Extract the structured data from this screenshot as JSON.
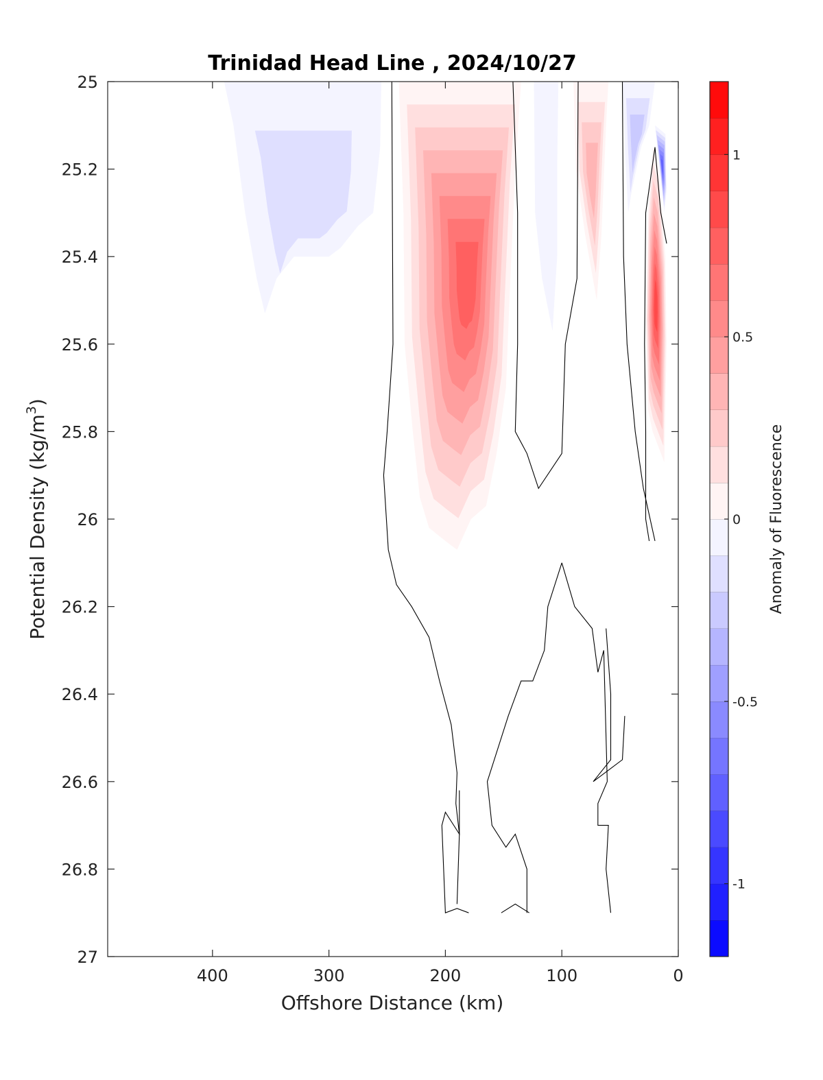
{
  "chart_data": {
    "type": "heatmap",
    "title": "Trinidad Head Line , 2024/10/27",
    "xlabel": "Offshore Distance (km)",
    "ylabel": "Potential Density (kg/m³)",
    "ylabel_parts": {
      "main": "Potential Density (kg/m",
      "sup": "3",
      "tail": ")"
    },
    "xlim": [
      490,
      0
    ],
    "ylim": [
      27,
      25
    ],
    "x_reversed": true,
    "y_reversed": true,
    "xticks": [
      400,
      300,
      200,
      100,
      0
    ],
    "xtick_labels": [
      "400",
      "300",
      "200",
      "100",
      "0"
    ],
    "yticks": [
      25,
      25.2,
      25.4,
      25.6,
      25.8,
      26,
      26.2,
      26.4,
      26.6,
      26.8,
      27
    ],
    "ytick_labels": [
      "25",
      "25.2",
      "25.4",
      "25.6",
      "25.8",
      "26",
      "26.2",
      "26.4",
      "26.6",
      "26.8",
      "27"
    ],
    "colorbar": {
      "label": "Anomaly of Fluorescence",
      "range": [
        -1.2,
        1.2
      ],
      "ticks": [
        1,
        0.5,
        0,
        -0.5,
        -1
      ],
      "tick_labels": [
        "1",
        "0.5",
        "0",
        "-0.5",
        "-1"
      ],
      "levels": 24,
      "colormap": "blue-white-red",
      "color_min": "#0000ff",
      "color_zero": "#ffffff",
      "color_max": "#ff0000"
    },
    "anomaly_features": [
      {
        "id": "offshore-negative-lens",
        "sign": "negative",
        "peak_value": -0.15,
        "x_range_km": [
          390,
          255
        ],
        "density_range": [
          25.0,
          25.53
        ]
      },
      {
        "id": "main-positive-core",
        "sign": "positive",
        "peak_value": 0.75,
        "peak_x_km": 180,
        "peak_density": 25.45,
        "x_range_km": [
          240,
          135
        ],
        "density_range": [
          25.0,
          26.07
        ]
      },
      {
        "id": "midshelf-negative",
        "sign": "negative",
        "peak_value": -0.1,
        "x_range_km": [
          125,
          103
        ],
        "density_range": [
          25.0,
          25.57
        ]
      },
      {
        "id": "shelf-positive",
        "sign": "positive",
        "peak_value": 0.35,
        "x_range_km": [
          90,
          60
        ],
        "density_range": [
          25.0,
          25.5
        ]
      },
      {
        "id": "nearshore-negative",
        "sign": "negative",
        "peak_value": -0.3,
        "x_range_km": [
          48,
          20
        ],
        "density_range": [
          25.0,
          25.3
        ]
      },
      {
        "id": "coastal-positive-jet",
        "sign": "positive",
        "peak_value": 0.85,
        "x_range_km": [
          30,
          10
        ],
        "density_range": [
          25.15,
          25.87
        ]
      },
      {
        "id": "coastal-negative-edge",
        "sign": "negative",
        "peak_value": -0.8,
        "x_range_km": [
          20,
          10
        ],
        "density_range": [
          25.1,
          25.3
        ]
      }
    ],
    "zero_contours": [
      {
        "points": [
          [
            246,
            25.0
          ],
          [
            245,
            25.6
          ],
          [
            250,
            25.8
          ],
          [
            253,
            25.9
          ],
          [
            249,
            26.07
          ],
          [
            242,
            26.15
          ],
          [
            229,
            26.2
          ],
          [
            214,
            26.27
          ],
          [
            205,
            26.37
          ],
          [
            195,
            26.47
          ],
          [
            190,
            26.58
          ],
          [
            191,
            26.65
          ],
          [
            188,
            26.72
          ],
          [
            190,
            26.88
          ]
        ]
      },
      {
        "points": [
          [
            188,
            26.62
          ],
          [
            188,
            26.72
          ],
          [
            200,
            26.67
          ],
          [
            203,
            26.7
          ],
          [
            200,
            26.9
          ],
          [
            190,
            26.89
          ],
          [
            180,
            26.9
          ]
        ]
      },
      {
        "points": [
          [
            142,
            25.0
          ],
          [
            138,
            25.3
          ],
          [
            138,
            25.6
          ],
          [
            140,
            25.8
          ],
          [
            130,
            25.85
          ],
          [
            120,
            25.93
          ],
          [
            100,
            25.85
          ],
          [
            97,
            25.6
          ],
          [
            87,
            25.45
          ],
          [
            86,
            25.0
          ]
        ]
      },
      {
        "points": [
          [
            48,
            25.0
          ],
          [
            47,
            25.4
          ],
          [
            44,
            25.6
          ],
          [
            37,
            25.8
          ],
          [
            30,
            25.93
          ],
          [
            20,
            26.05
          ]
        ]
      },
      {
        "points": [
          [
            20,
            25.15
          ],
          [
            28,
            25.3
          ],
          [
            29,
            25.6
          ],
          [
            28,
            25.8
          ],
          [
            28,
            26.0
          ],
          [
            25,
            26.05
          ]
        ]
      },
      {
        "points": [
          [
            20,
            25.15
          ],
          [
            15,
            25.3
          ],
          [
            10,
            25.37
          ]
        ]
      },
      {
        "points": [
          [
            100,
            26.1
          ],
          [
            89,
            26.2
          ],
          [
            74,
            26.25
          ],
          [
            69,
            26.35
          ],
          [
            64,
            26.3
          ],
          [
            61,
            26.6
          ],
          [
            69,
            26.65
          ],
          [
            69,
            26.7
          ],
          [
            60,
            26.7
          ],
          [
            62,
            26.8
          ],
          [
            58,
            26.9
          ]
        ]
      },
      {
        "points": [
          [
            100,
            26.1
          ],
          [
            112,
            26.2
          ],
          [
            115,
            26.3
          ],
          [
            125,
            26.37
          ],
          [
            135,
            26.37
          ],
          [
            146,
            26.45
          ],
          [
            164,
            26.6
          ],
          [
            160,
            26.7
          ],
          [
            148,
            26.75
          ],
          [
            140,
            26.72
          ],
          [
            130,
            26.8
          ],
          [
            130,
            26.9
          ]
        ]
      },
      {
        "points": [
          [
            62,
            26.25
          ],
          [
            58,
            26.4
          ],
          [
            58,
            26.55
          ],
          [
            73,
            26.6
          ],
          [
            48,
            26.55
          ],
          [
            46,
            26.45
          ]
        ]
      },
      {
        "points": [
          [
            152,
            26.9
          ],
          [
            140,
            26.88
          ],
          [
            128,
            26.9
          ]
        ]
      }
    ]
  }
}
